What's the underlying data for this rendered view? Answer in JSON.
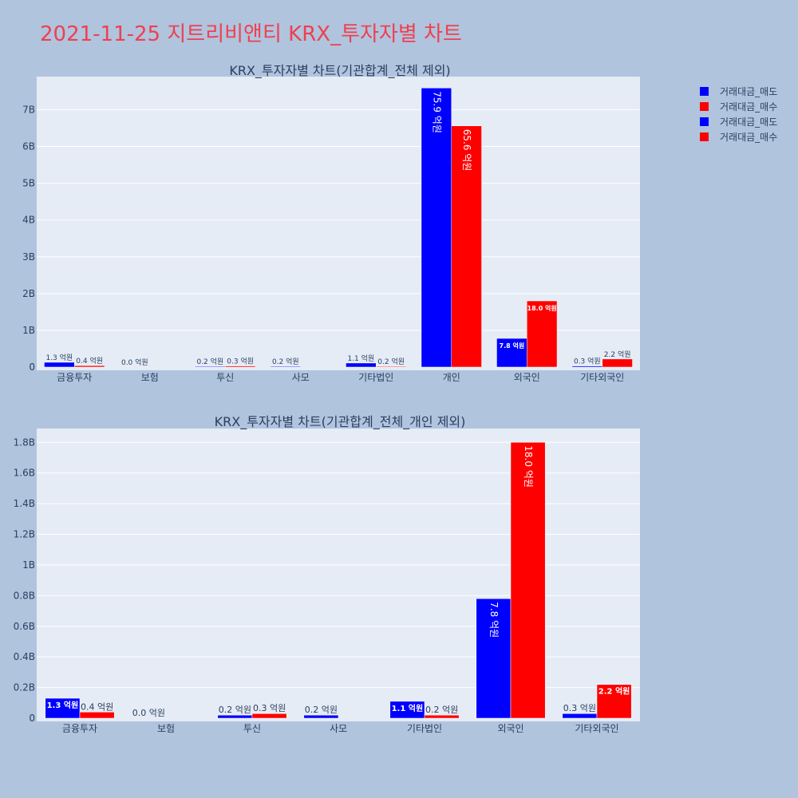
{
  "title": "2021-11-25 지트리비앤티 KRX_투자자별 차트",
  "colors": {
    "sell": "#0000ff",
    "buy": "#ff0000",
    "plot_bg": "#e5ecf6",
    "page_bg": "#b0c4de",
    "title": "#ef4050"
  },
  "legend": {
    "items": [
      "거래대금_매도",
      "거래대금_매수",
      "거래대금_매도",
      "거래대금_매수"
    ],
    "placement": "top-right"
  },
  "chart_data": [
    {
      "type": "bar",
      "title": "KRX_투자자별 차트(기관합계_전체 제외)",
      "categories": [
        "금융투자",
        "보험",
        "투신",
        "사모",
        "기타법인",
        "개인",
        "외국인",
        "기타외국인"
      ],
      "series": [
        {
          "name": "거래대금_매도",
          "color": "#0000ff",
          "values": [
            130000000,
            0,
            20000000,
            20000000,
            110000000,
            7590000000,
            780000000,
            30000000
          ],
          "labels": [
            "1.3 억원",
            "0.0 억원",
            "0.2 억원",
            "0.2 억원",
            "1.1 억원",
            "75.9 억원",
            "7.8 억원",
            "0.3 억원"
          ]
        },
        {
          "name": "거래대금_매수",
          "color": "#ff0000",
          "values": [
            40000000,
            0,
            30000000,
            0,
            20000000,
            6560000000,
            1800000000,
            220000000
          ],
          "labels": [
            "0.4 억원",
            "",
            "0.3 억원",
            "",
            "0.2 억원",
            "65.6 억원",
            "18.0 억원",
            "2.2 억원"
          ]
        }
      ],
      "ylim": [
        0,
        7900000000
      ],
      "yticks": [
        0,
        1000000000,
        2000000000,
        3000000000,
        4000000000,
        5000000000,
        6000000000,
        7000000000
      ],
      "ytick_labels": [
        "0",
        "1B",
        "2B",
        "3B",
        "4B",
        "5B",
        "6B",
        "7B"
      ],
      "grid": true
    },
    {
      "type": "bar",
      "title": "KRX_투자자별 차트(기관합계_전체_개인 제외)",
      "categories": [
        "금융투자",
        "보험",
        "투신",
        "사모",
        "기타법인",
        "외국인",
        "기타외국인"
      ],
      "series": [
        {
          "name": "거래대금_매도",
          "color": "#0000ff",
          "values": [
            130000000,
            0,
            20000000,
            20000000,
            110000000,
            780000000,
            30000000
          ],
          "labels": [
            "1.3 억원",
            "0.0 억원",
            "0.2 억원",
            "0.2 억원",
            "1.1 억원",
            "7.8 억원",
            "0.3 억원"
          ]
        },
        {
          "name": "거래대금_매수",
          "color": "#ff0000",
          "values": [
            40000000,
            0,
            30000000,
            0,
            20000000,
            1800000000,
            220000000
          ],
          "labels": [
            "0.4 억원",
            "",
            "0.3 억원",
            "",
            "0.2 억원",
            "18.0 억원",
            "2.2 억원"
          ]
        }
      ],
      "ylim": [
        0,
        1890000000
      ],
      "yticks": [
        0,
        200000000,
        400000000,
        600000000,
        800000000,
        1000000000,
        1200000000,
        1400000000,
        1600000000,
        1800000000
      ],
      "ytick_labels": [
        "0",
        "0.2B",
        "0.4B",
        "0.6B",
        "0.8B",
        "1B",
        "1.2B",
        "1.4B",
        "1.6B",
        "1.8B"
      ],
      "grid": true
    }
  ]
}
